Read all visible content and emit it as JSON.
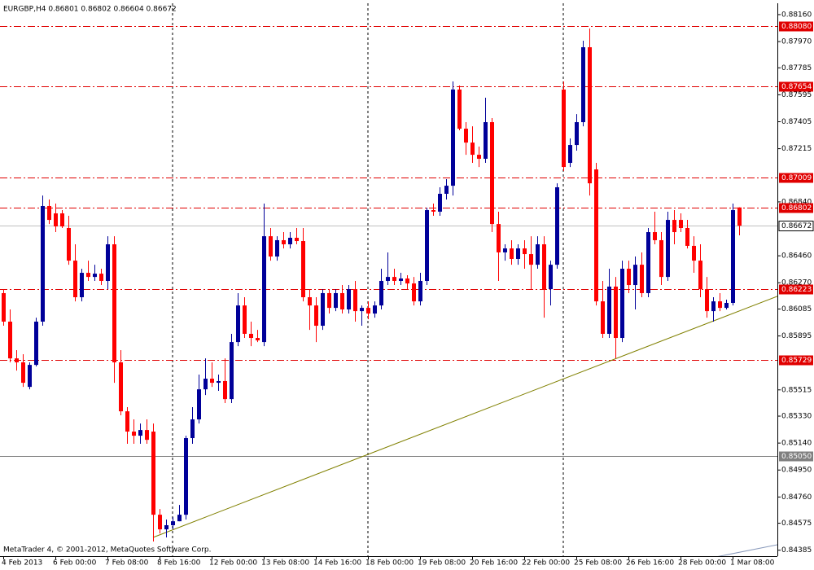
{
  "chart_data": {
    "type": "candlestick",
    "title": "EURGBP,H4  0.86801 0.86802 0.86604 0.86672",
    "footer": "MetaTrader 4, © 2001-2012, MetaQuotes Software Corp.",
    "up_color": "#000099",
    "down_color": "#ff0000",
    "ylim": [
      0.84343,
      0.8824
    ],
    "yticks": [
      {
        "value": 0.8816,
        "label": "0.88160"
      },
      {
        "value": 0.8797,
        "label": "0.87970"
      },
      0.87785,
      0.87595,
      0.87405,
      0.87215,
      {
        "value": 0.8684,
        "label": "0.86840"
      },
      {
        "value": 0.8646,
        "label": "0.86460"
      },
      {
        "value": 0.8627,
        "label": "0.86270"
      },
      0.86085,
      0.85895,
      0.85515,
      {
        "value": 0.8533,
        "label": "0.85330"
      },
      {
        "value": 0.8514,
        "label": "0.85140"
      },
      {
        "value": 0.8495,
        "label": "0.84950"
      },
      {
        "value": 0.8476,
        "label": "0.84760"
      },
      0.84575,
      0.84385
    ],
    "levels": [
      {
        "value": 0.8808,
        "label": "0.88080",
        "color": "#e00000",
        "style": "dashdot"
      },
      {
        "value": 0.87654,
        "label": "0.87654",
        "color": "#e00000",
        "style": "dashdot"
      },
      {
        "value": 0.87009,
        "label": "0.87009",
        "color": "#e00000",
        "style": "dashdot"
      },
      {
        "value": 0.86802,
        "label": "0.86802",
        "color": "#e00000",
        "style": "dashdot"
      },
      {
        "value": 0.86223,
        "label": "0.86223",
        "color": "#e00000",
        "style": "dashdot"
      },
      {
        "value": 0.85729,
        "label": "0.85729",
        "color": "#e00000",
        "style": "dashdot"
      },
      {
        "value": 0.8505,
        "label": "0.85050",
        "color": "#808080",
        "style": "solid"
      }
    ],
    "current_price": {
      "value": 0.86672,
      "label": "0.86672",
      "color": "#c0c0c0"
    },
    "trendlines": [
      {
        "points": [
          [
            23,
            0.84475
          ],
          [
            112,
            0.86053
          ]
        ],
        "color": "#808000"
      },
      {
        "points": [
          [
            96,
            0.84215
          ],
          [
            113,
            0.8437
          ]
        ],
        "color": "#8899bb"
      }
    ],
    "categories": [
      "4 Feb 2013",
      null,
      null,
      null,
      null,
      null,
      null,
      null,
      "6 Feb 00:00",
      null,
      null,
      null,
      null,
      null,
      null,
      null,
      "7 Feb 08:00",
      null,
      null,
      null,
      null,
      null,
      null,
      null,
      "8 Feb 16:00",
      null,
      null,
      null,
      null,
      null,
      null,
      null,
      "12 Feb 00:00",
      null,
      null,
      null,
      null,
      null,
      null,
      null,
      "13 Feb 08:00",
      null,
      null,
      null,
      null,
      null,
      null,
      null,
      "14 Feb 16:00",
      null,
      null,
      null,
      null,
      null,
      null,
      null,
      "18 Feb 00:00",
      null,
      null,
      null,
      null,
      null,
      null,
      null,
      "19 Feb 08:00",
      null,
      null,
      null,
      null,
      null,
      null,
      null,
      "20 Feb 16:00",
      null,
      null,
      null,
      null,
      null,
      null,
      null,
      "22 Feb 00:00",
      null,
      null,
      null,
      null,
      null,
      null,
      null,
      "25 Feb 08:00",
      null,
      null,
      null,
      null,
      null,
      null,
      null,
      "26 Feb 16:00",
      null,
      null,
      null,
      null,
      null,
      null,
      null,
      "28 Feb 00:00",
      null,
      null,
      null,
      null,
      null,
      null,
      null,
      "1 Mar 08:00",
      null
    ],
    "candles": [
      [
        0.86197,
        0.86225,
        0.85967,
        0.85996
      ],
      [
        0.85996,
        0.86082,
        0.85709,
        0.85737
      ],
      [
        0.85737,
        0.85795,
        0.85651,
        0.85709
      ],
      [
        0.85709,
        0.85766,
        0.85536,
        0.85565
      ],
      [
        0.85536,
        0.85709,
        0.85519,
        0.85691
      ],
      [
        0.85691,
        0.86024,
        0.8568,
        0.85996
      ],
      [
        0.85996,
        0.86885,
        0.85967,
        0.86811
      ],
      [
        0.86811,
        0.86857,
        0.86684,
        0.86713
      ],
      [
        0.86759,
        0.86828,
        0.86627,
        0.86667
      ],
      [
        0.86759,
        0.86782,
        0.86656,
        0.86667
      ],
      [
        0.86656,
        0.86742,
        0.86397,
        0.86426
      ],
      [
        0.86426,
        0.86541,
        0.86139,
        0.86168
      ],
      [
        0.86168,
        0.86369,
        0.86139,
        0.8634
      ],
      [
        0.8634,
        0.86426,
        0.86283,
        0.86311
      ],
      [
        0.86311,
        0.86397,
        0.86283,
        0.86334
      ],
      [
        0.86334,
        0.86369,
        0.86254,
        0.86283
      ],
      [
        0.86283,
        0.86598,
        0.86225,
        0.86541
      ],
      [
        0.86541,
        0.86598,
        0.85565,
        0.85709
      ],
      [
        0.85709,
        0.85795,
        0.85336,
        0.85364
      ],
      [
        0.85364,
        0.85393,
        0.85135,
        0.85221
      ],
      [
        0.85221,
        0.85307,
        0.85135,
        0.85192
      ],
      [
        0.85192,
        0.85278,
        0.85135,
        0.85232
      ],
      [
        0.85232,
        0.85307,
        0.85135,
        0.85163
      ],
      [
        0.85221,
        0.85278,
        0.84446,
        0.84635
      ],
      [
        0.84635,
        0.84675,
        0.84503,
        0.84532
      ],
      [
        0.84532,
        0.84601,
        0.84475,
        0.84561
      ],
      [
        0.84561,
        0.84618,
        0.84532,
        0.84589
      ],
      [
        0.84589,
        0.84704,
        0.84589,
        0.84635
      ],
      [
        0.84635,
        0.85192,
        0.84601,
        0.85175
      ],
      [
        0.85175,
        0.85393,
        0.85135,
        0.85307
      ],
      [
        0.85307,
        0.85623,
        0.85278,
        0.85519
      ],
      [
        0.85519,
        0.85737,
        0.85479,
        0.85594
      ],
      [
        0.85594,
        0.85709,
        0.85536,
        0.85565
      ],
      [
        0.85565,
        0.85623,
        0.85508,
        0.85577
      ],
      [
        0.85577,
        0.85737,
        0.85422,
        0.8545
      ],
      [
        0.8545,
        0.8591,
        0.85422,
        0.85852
      ],
      [
        0.85852,
        0.86197,
        0.85823,
        0.8611
      ],
      [
        0.8611,
        0.86168,
        0.85881,
        0.8591
      ],
      [
        0.8591,
        0.85996,
        0.85823,
        0.85881
      ],
      [
        0.85881,
        0.85938,
        0.85852,
        0.85864
      ],
      [
        0.85852,
        0.86828,
        0.85823,
        0.86598
      ],
      [
        0.86598,
        0.86656,
        0.86426,
        0.86455
      ],
      [
        0.86455,
        0.86598,
        0.86426,
        0.8657
      ],
      [
        0.8657,
        0.86627,
        0.86512,
        0.86541
      ],
      [
        0.86541,
        0.86627,
        0.86512,
        0.86587
      ],
      [
        0.86587,
        0.86656,
        0.86541,
        0.86564
      ],
      [
        0.86564,
        0.86656,
        0.86139,
        0.86168
      ],
      [
        0.86168,
        0.86225,
        0.85938,
        0.8611
      ],
      [
        0.8611,
        0.86168,
        0.85852,
        0.85967
      ],
      [
        0.85967,
        0.86225,
        0.85938,
        0.86197
      ],
      [
        0.86197,
        0.86225,
        0.86053,
        0.86093
      ],
      [
        0.86093,
        0.86225,
        0.8607,
        0.86197
      ],
      [
        0.86197,
        0.86254,
        0.86053,
        0.86082
      ],
      [
        0.86082,
        0.86254,
        0.86053,
        0.86225
      ],
      [
        0.86225,
        0.86283,
        0.85996,
        0.8607
      ],
      [
        0.8607,
        0.8611,
        0.85967,
        0.86093
      ],
      [
        0.86093,
        0.86139,
        0.86013,
        0.86053
      ],
      [
        0.86053,
        0.86139,
        0.86024,
        0.8611
      ],
      [
        0.8611,
        0.86369,
        0.86082,
        0.86283
      ],
      [
        0.86283,
        0.86484,
        0.86254,
        0.86311
      ],
      [
        0.86311,
        0.86369,
        0.86254,
        0.86283
      ],
      [
        0.86283,
        0.8634,
        0.86254,
        0.863
      ],
      [
        0.863,
        0.86323,
        0.86225,
        0.86265
      ],
      [
        0.86265,
        0.86311,
        0.8611,
        0.86139
      ],
      [
        0.86139,
        0.8634,
        0.8611,
        0.86283
      ],
      [
        0.86283,
        0.86799,
        0.86254,
        0.86782
      ],
      [
        0.86782,
        0.86828,
        0.86742,
        0.86771
      ],
      [
        0.86771,
        0.86943,
        0.86742,
        0.86897
      ],
      [
        0.86897,
        0.87,
        0.86857,
        0.86954
      ],
      [
        0.86954,
        0.87689,
        0.86885,
        0.87632
      ],
      [
        0.87632,
        0.8766,
        0.87345,
        0.87356
      ],
      [
        0.87356,
        0.87402,
        0.87172,
        0.87258
      ],
      [
        0.87258,
        0.87373,
        0.87115,
        0.87172
      ],
      [
        0.87172,
        0.8723,
        0.87086,
        0.87144
      ],
      [
        0.87144,
        0.87574,
        0.87115,
        0.87402
      ],
      [
        0.87402,
        0.87431,
        0.86627,
        0.86684
      ],
      [
        0.86684,
        0.86771,
        0.86283,
        0.86484
      ],
      [
        0.86484,
        0.86541,
        0.86426,
        0.86512
      ],
      [
        0.86512,
        0.8657,
        0.86397,
        0.86438
      ],
      [
        0.86438,
        0.86541,
        0.86397,
        0.86512
      ],
      [
        0.86512,
        0.8657,
        0.86369,
        0.86472
      ],
      [
        0.86472,
        0.86598,
        0.86225,
        0.86397
      ],
      [
        0.86397,
        0.86598,
        0.86369,
        0.86541
      ],
      [
        0.86541,
        0.86598,
        0.86024,
        0.86225
      ],
      [
        0.86225,
        0.86426,
        0.8611,
        0.86397
      ],
      [
        0.86397,
        0.86971,
        0.86369,
        0.86943
      ],
      [
        0.87632,
        0.87689,
        0.87058,
        0.87086
      ],
      [
        0.87115,
        0.87287,
        0.87086,
        0.87241
      ],
      [
        0.87241,
        0.87459,
        0.87201,
        0.87402
      ],
      [
        0.87402,
        0.87976,
        0.87373,
        0.8793
      ],
      [
        0.8793,
        0.88062,
        0.86885,
        0.86971
      ],
      [
        0.87069,
        0.87115,
        0.8611,
        0.86139
      ],
      [
        0.86139,
        0.86283,
        0.85881,
        0.8591
      ],
      [
        0.8591,
        0.86369,
        0.85881,
        0.86243
      ],
      [
        0.86243,
        0.86311,
        0.85737,
        0.85881
      ],
      [
        0.85881,
        0.86426,
        0.85852,
        0.86369
      ],
      [
        0.86369,
        0.86426,
        0.86197,
        0.86254
      ],
      [
        0.86254,
        0.86455,
        0.86082,
        0.86397
      ],
      [
        0.86397,
        0.86484,
        0.86168,
        0.86197
      ],
      [
        0.86197,
        0.86656,
        0.86168,
        0.86627
      ],
      [
        0.86627,
        0.86771,
        0.86541,
        0.8657
      ],
      [
        0.8657,
        0.86627,
        0.86254,
        0.86311
      ],
      [
        0.86311,
        0.86771,
        0.86283,
        0.86713
      ],
      [
        0.86713,
        0.86782,
        0.86541,
        0.86627
      ],
      [
        0.86713,
        0.86759,
        0.86627,
        0.86656
      ],
      [
        0.86656,
        0.86713,
        0.86512,
        0.8653
      ],
      [
        0.8653,
        0.86598,
        0.8634,
        0.86426
      ],
      [
        0.86426,
        0.86541,
        0.86168,
        0.86225
      ],
      [
        0.86225,
        0.86311,
        0.86024,
        0.8607
      ],
      [
        0.8607,
        0.86168,
        0.85996,
        0.86139
      ],
      [
        0.86139,
        0.86197,
        0.8607,
        0.86093
      ],
      [
        0.86093,
        0.86151,
        0.86082,
        0.86128
      ],
      [
        0.86128,
        0.86828,
        0.8611,
        0.86782
      ],
      [
        0.86801,
        0.86802,
        0.86604,
        0.86672
      ]
    ]
  }
}
